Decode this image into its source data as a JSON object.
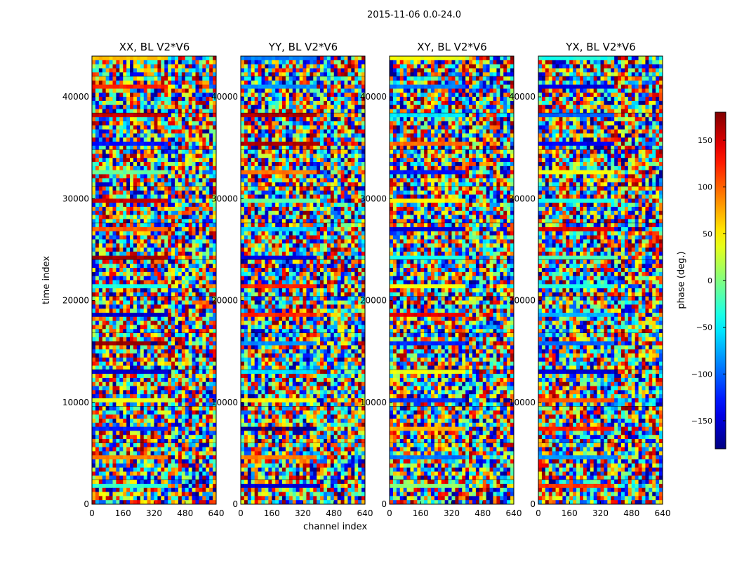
{
  "chart_data": {
    "type": "heatmap",
    "title": "2015-11-06 0.0-24.0",
    "xlabel": "channel index",
    "ylabel": "time index",
    "xlim": [
      0,
      640
    ],
    "ylim": [
      0,
      44000
    ],
    "xticks": [
      0,
      160,
      320,
      480,
      640
    ],
    "yticks": [
      0,
      10000,
      20000,
      30000,
      40000
    ],
    "colorbar": {
      "label": "phase (deg.)",
      "range": [
        -180,
        180
      ],
      "ticks": [
        -150,
        -100,
        -50,
        0,
        50,
        100,
        150
      ],
      "tick_labels": [
        "−150",
        "−100",
        "−50",
        "0",
        "50",
        "100",
        "150"
      ],
      "colormap": "jet"
    },
    "panels": [
      {
        "title": "XX, BL V2*V6"
      },
      {
        "title": "YY, BL V2*V6"
      },
      {
        "title": "XY, BL V2*V6"
      },
      {
        "title": "YX, BL V2*V6"
      }
    ]
  }
}
